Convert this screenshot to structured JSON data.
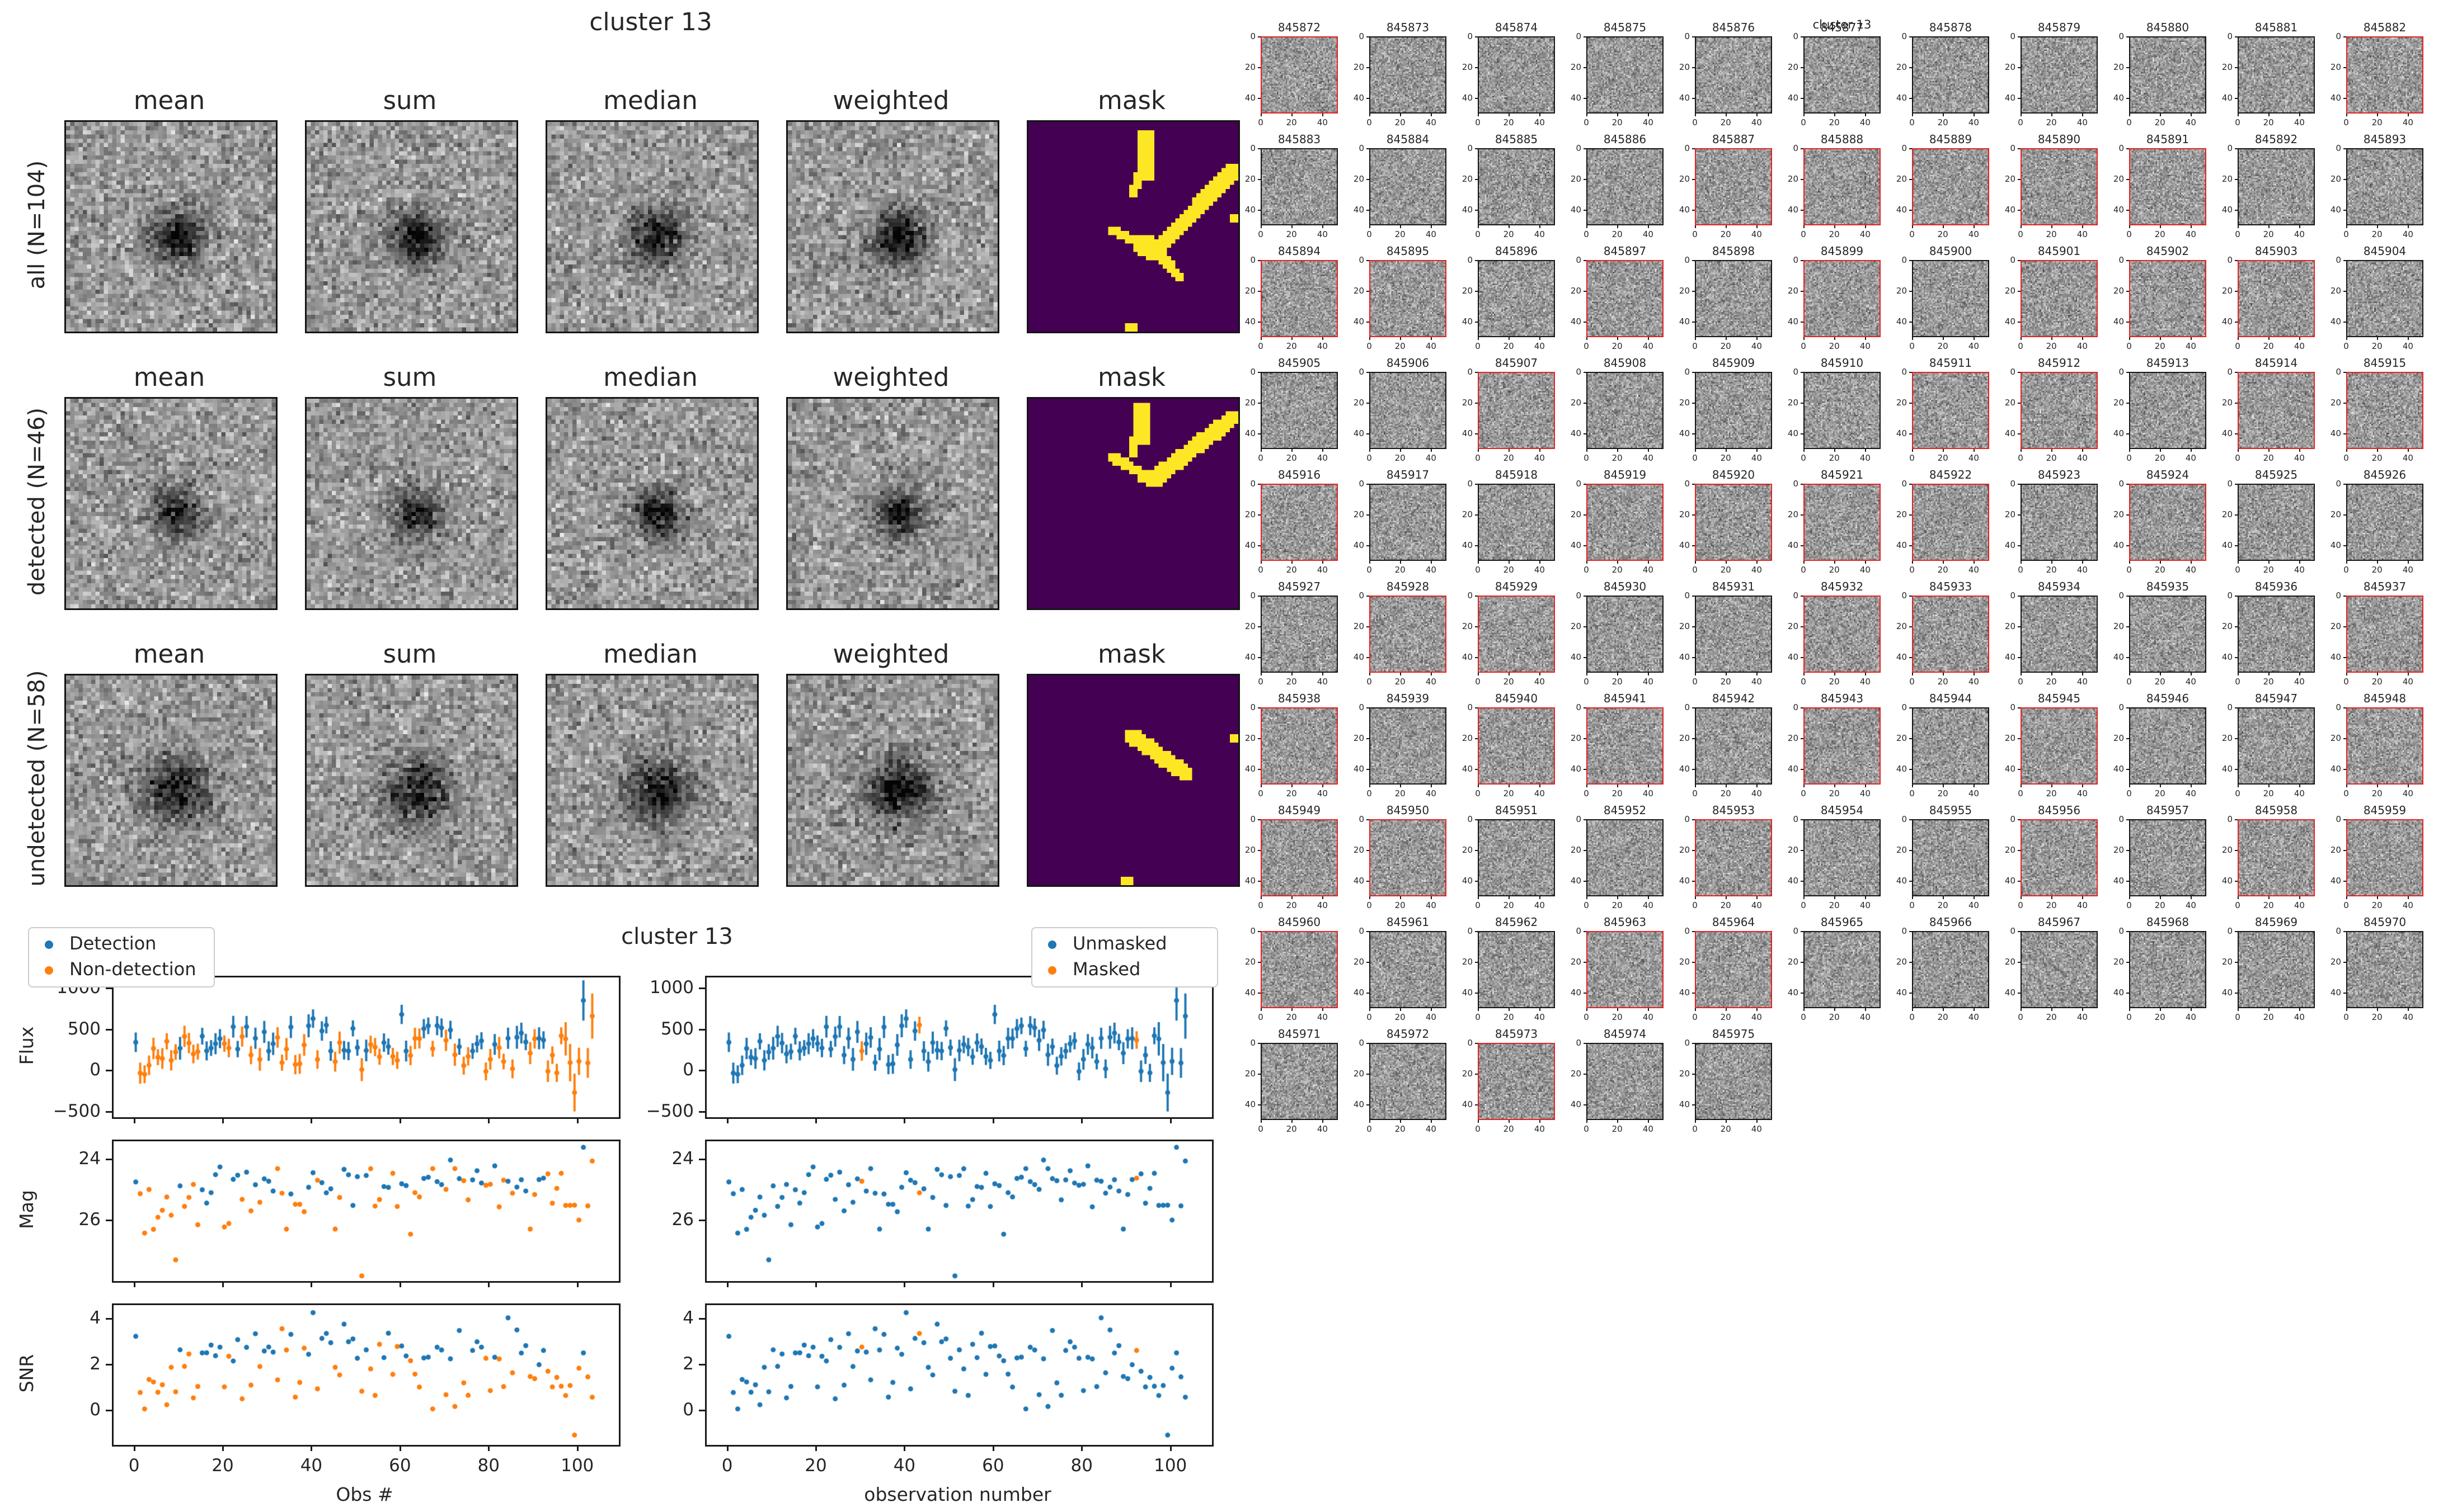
{
  "colors": {
    "blue": "#1f77b4",
    "orange": "#ff7f0e",
    "mask_bg": "#440154",
    "mask_fg": "#fde725",
    "red_border": "#e32222",
    "black_border": "#151515",
    "spine": "#1a1a1a"
  },
  "chart_data": [
    {
      "type": "heatmap",
      "title": "cluster 13",
      "col_headers": [
        "mean",
        "sum",
        "median",
        "weighted",
        "mask"
      ],
      "row_labels": [
        "all (N=104)",
        "detected (N=46)",
        "undetected (N=58)"
      ],
      "rows": [
        {
          "label": "all (N=104)",
          "seed": 101,
          "blob_amp": 0.55,
          "blob_sigma": 4.3,
          "mask": {
            "segments": [
              [
                28,
                4,
                28,
                12,
                4
              ],
              [
                26,
                13,
                25,
                17,
                2
              ],
              [
                20,
                26,
                27,
                29,
                2
              ],
              [
                27,
                29,
                31,
                31,
                4
              ],
              [
                31,
                31,
                36,
                37,
                2
              ],
              [
                31,
                29,
                48,
                11,
                3
              ]
            ],
            "dots": [
              [
                49,
                23
              ],
              [
                24,
                49
              ],
              [
                25,
                49
              ]
            ]
          }
        },
        {
          "label": "detected (N=46)",
          "seed": 202,
          "blob_amp": 0.52,
          "blob_sigma": 3.9,
          "mask": {
            "segments": [
              [
                27,
                3,
                27,
                9,
                4
              ],
              [
                25,
                10,
                25,
                13,
                2
              ],
              [
                20,
                14,
                27,
                18,
                2
              ],
              [
                27,
                18,
                30,
                19,
                3
              ],
              [
                30,
                18,
                48,
                4,
                3
              ]
            ],
            "dots": []
          }
        },
        {
          "label": "undetected (N=58)",
          "seed": 303,
          "blob_amp": 0.52,
          "blob_sigma": 5.3,
          "mask": {
            "segments": [
              [
                24,
                14,
                37,
                23,
                3
              ]
            ],
            "dots": [
              [
                49,
                15
              ],
              [
                23,
                49
              ],
              [
                24,
                49
              ]
            ]
          }
        }
      ],
      "blob_center": [
        26,
        27
      ],
      "image_grid": 50
    },
    {
      "type": "scatter",
      "title": "cluster 13",
      "columns": [
        {
          "xlabel": "Obs #",
          "color_by": "detection",
          "legend": [
            {
              "label": "Detection",
              "color": "#1f77b4"
            },
            {
              "label": "Non-detection",
              "color": "#ff7f0e"
            }
          ]
        },
        {
          "xlabel": "observation number",
          "color_by": "mask",
          "legend": [
            {
              "label": "Unmasked",
              "color": "#1f77b4"
            },
            {
              "label": "Masked",
              "color": "#ff7f0e"
            }
          ]
        }
      ],
      "rows": [
        {
          "ylabel": "Flux",
          "ylim": [
            -550,
            1150
          ],
          "yticks": [
            1000,
            500,
            0,
            -500
          ],
          "ytick_labels": [
            "1000",
            "500",
            "0",
            "−500"
          ],
          "errorbars": true
        },
        {
          "ylabel": "Mag",
          "ylim": [
            27.95,
            23.35
          ],
          "yticks": [
            24,
            26
          ],
          "ytick_labels": [
            "24",
            "26"
          ],
          "errorbars": false,
          "inverted": true
        },
        {
          "ylabel": "SNR",
          "ylim": [
            -1.45,
            4.65
          ],
          "yticks": [
            0,
            2,
            4
          ],
          "ytick_labels": [
            "0",
            "2",
            "4"
          ],
          "errorbars": false
        }
      ],
      "xlim": [
        -5,
        109
      ],
      "xticks": [
        0,
        20,
        40,
        60,
        80,
        100
      ],
      "xtick_labels": [
        "0",
        "20",
        "40",
        "60",
        "80",
        "100"
      ],
      "n_obs": 104,
      "detected_obs": [
        0,
        10,
        15,
        16,
        17,
        18,
        19,
        22,
        23,
        25,
        27,
        29,
        30,
        31,
        35,
        39,
        40,
        42,
        43,
        44,
        47,
        48,
        49,
        50,
        52,
        56,
        57,
        60,
        61,
        65,
        66,
        68,
        69,
        71,
        73,
        76,
        77,
        78,
        81,
        84,
        86,
        87,
        88,
        91,
        92,
        101
      ],
      "masked_obs": [
        30,
        43,
        92
      ],
      "gen": {
        "seed": 1337,
        "flux_det": [
          420,
          115
        ],
        "flux_nondet": [
          245,
          135
        ],
        "flux_clamp_det": [
          255,
          700
        ],
        "flux_clamp_nondet": [
          -30,
          690
        ],
        "err": [
          95,
          45
        ],
        "err_boost_after": 96,
        "err_boost": 1.7,
        "mag_det": [
          24.72,
          0.38
        ],
        "mag_nondet": [
          25.42,
          0.68
        ],
        "mag_clamp_det": [
          23.9,
          25.6
        ],
        "mag_clamp_nondet": [
          24.25,
          27.5
        ],
        "snr_det": [
          2.92,
          0.5
        ],
        "snr_nondet": [
          1.42,
          0.72
        ],
        "snr_clamp_det": [
          2.05,
          4.1
        ],
        "snr_clamp_nondet": [
          0.12,
          3.62
        ]
      },
      "outliers": {
        "flux": {
          "99": [
            -250,
            230
          ],
          "101": [
            870,
            245
          ],
          "103": [
            680,
            275
          ]
        },
        "mag": {
          "9": 27.25,
          "51": 27.78,
          "101": 23.55,
          "103": 24.0
        },
        "snr": {
          "33": 3.62,
          "40": 4.32,
          "99": -1.02
        }
      }
    },
    {
      "type": "heatmap-grid",
      "title": "cluster 13",
      "cols": 11,
      "axis_ticks": [
        0,
        20,
        40
      ],
      "axis_tick_labels": [
        "0",
        "20",
        "40"
      ],
      "ids": [
        845872,
        845873,
        845874,
        845875,
        845876,
        845877,
        845878,
        845879,
        845880,
        845881,
        845882,
        845883,
        845884,
        845885,
        845886,
        845887,
        845888,
        845889,
        845890,
        845891,
        845892,
        845893,
        845894,
        845895,
        845896,
        845897,
        845898,
        845899,
        845900,
        845901,
        845902,
        845903,
        845904,
        845905,
        845906,
        845907,
        845908,
        845909,
        845910,
        845911,
        845912,
        845913,
        845914,
        845915,
        845916,
        845917,
        845918,
        845919,
        845920,
        845921,
        845922,
        845923,
        845924,
        845925,
        845926,
        845927,
        845928,
        845929,
        845930,
        845931,
        845932,
        845933,
        845934,
        845935,
        845936,
        845937,
        845938,
        845939,
        845940,
        845941,
        845942,
        845943,
        845944,
        845945,
        845946,
        845947,
        845948,
        845949,
        845950,
        845951,
        845952,
        845953,
        845954,
        845955,
        845956,
        845957,
        845958,
        845959,
        845960,
        845961,
        845962,
        845963,
        845964,
        845965,
        845966,
        845967,
        845968,
        845969,
        845970,
        845971,
        845972,
        845973,
        845974,
        845975
      ],
      "red_ids": [
        845872,
        845882,
        845887,
        845888,
        845889,
        845890,
        845891,
        845894,
        845895,
        845897,
        845899,
        845901,
        845902,
        845903,
        845907,
        845911,
        845912,
        845914,
        845915,
        845916,
        845919,
        845920,
        845921,
        845922,
        845924,
        845928,
        845929,
        845932,
        845933,
        845937,
        845938,
        845940,
        845941,
        845943,
        845945,
        845948,
        845949,
        845950,
        845953,
        845956,
        845958,
        845959,
        845960,
        845963,
        845964,
        845973
      ]
    }
  ]
}
